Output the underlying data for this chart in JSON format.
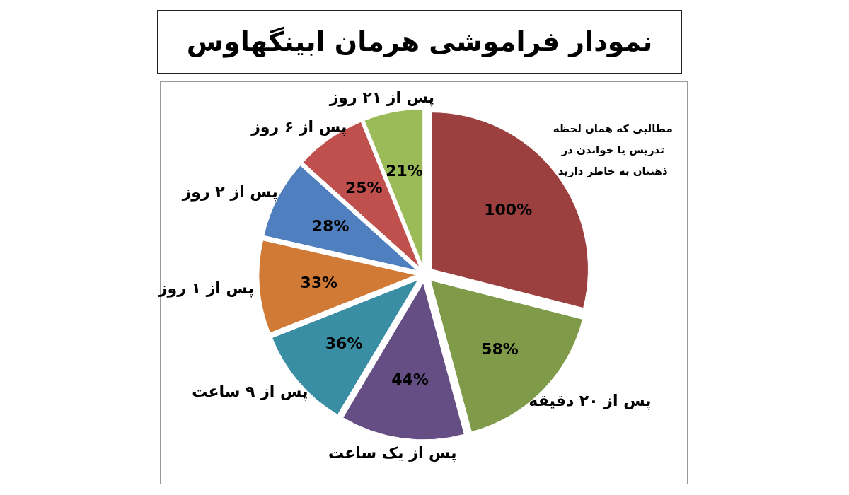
{
  "chart_data": {
    "type": "pie",
    "title": "نمودار فراموشی هرمان ابینگهاوس",
    "categories": [
      "مطالبی که همان لحظه تدریس یا خواندن در ذهنتان به خاطر دارید",
      "پس از ۲۰ دقیقه",
      "پس از یک ساعت",
      "پس از ۹ ساعت",
      "پس از ۱ روز",
      "پس از ۲ روز",
      "پس از ۶ روز",
      "پس از ۲۱ روز"
    ],
    "values": [
      100,
      58,
      44,
      36,
      33,
      28,
      25,
      21
    ],
    "value_labels": [
      "100%",
      "58%",
      "44%",
      "36%",
      "33%",
      "28%",
      "25%",
      "21%"
    ],
    "colors": [
      "#9c3f3f",
      "#7f9a48",
      "#654e84",
      "#3a8ea4",
      "#d07a36",
      "#4f7fbe",
      "#c0504d",
      "#9bbb59"
    ]
  }
}
